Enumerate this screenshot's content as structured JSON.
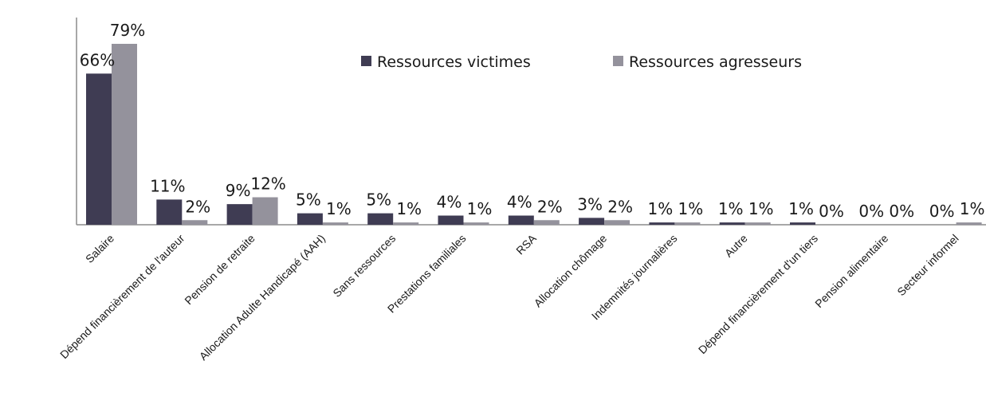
{
  "chart_data": {
    "type": "bar",
    "title": "",
    "xlabel": "",
    "ylabel": "",
    "ylim": [
      0,
      80
    ],
    "grid": false,
    "legend_position": "top-center",
    "categories": [
      "Salaire",
      "Dépend financièrement de l'auteur",
      "Pension de retraite",
      "Allocation Adulte Handicapé (AAH)",
      "Sans ressources",
      "Prestations familiales",
      "RSA",
      "Allocation chômage",
      "Indemnités journalières",
      "Autre",
      "Dépend financièrement d'un tiers",
      "Pension alimentaire",
      "Secteur informel"
    ],
    "series": [
      {
        "name": "Ressources victimes",
        "color": "#3f3c53",
        "values": [
          66,
          11,
          9,
          5,
          5,
          4,
          4,
          3,
          1,
          1,
          1,
          0,
          0
        ],
        "labels": [
          "66%",
          "11%",
          "9%",
          "5%",
          "5%",
          "4%",
          "4%",
          "3%",
          "1%",
          "1%",
          "1%",
          "0%",
          "0%"
        ]
      },
      {
        "name": "Ressources agresseurs",
        "color": "#94929c",
        "values": [
          79,
          2,
          12,
          1,
          1,
          1,
          2,
          2,
          1,
          1,
          0,
          0,
          1
        ],
        "labels": [
          "79%",
          "2%",
          "12%",
          "1%",
          "1%",
          "1%",
          "2%",
          "2%",
          "1%",
          "1%",
          "0%",
          "0%",
          "1%"
        ]
      }
    ]
  }
}
